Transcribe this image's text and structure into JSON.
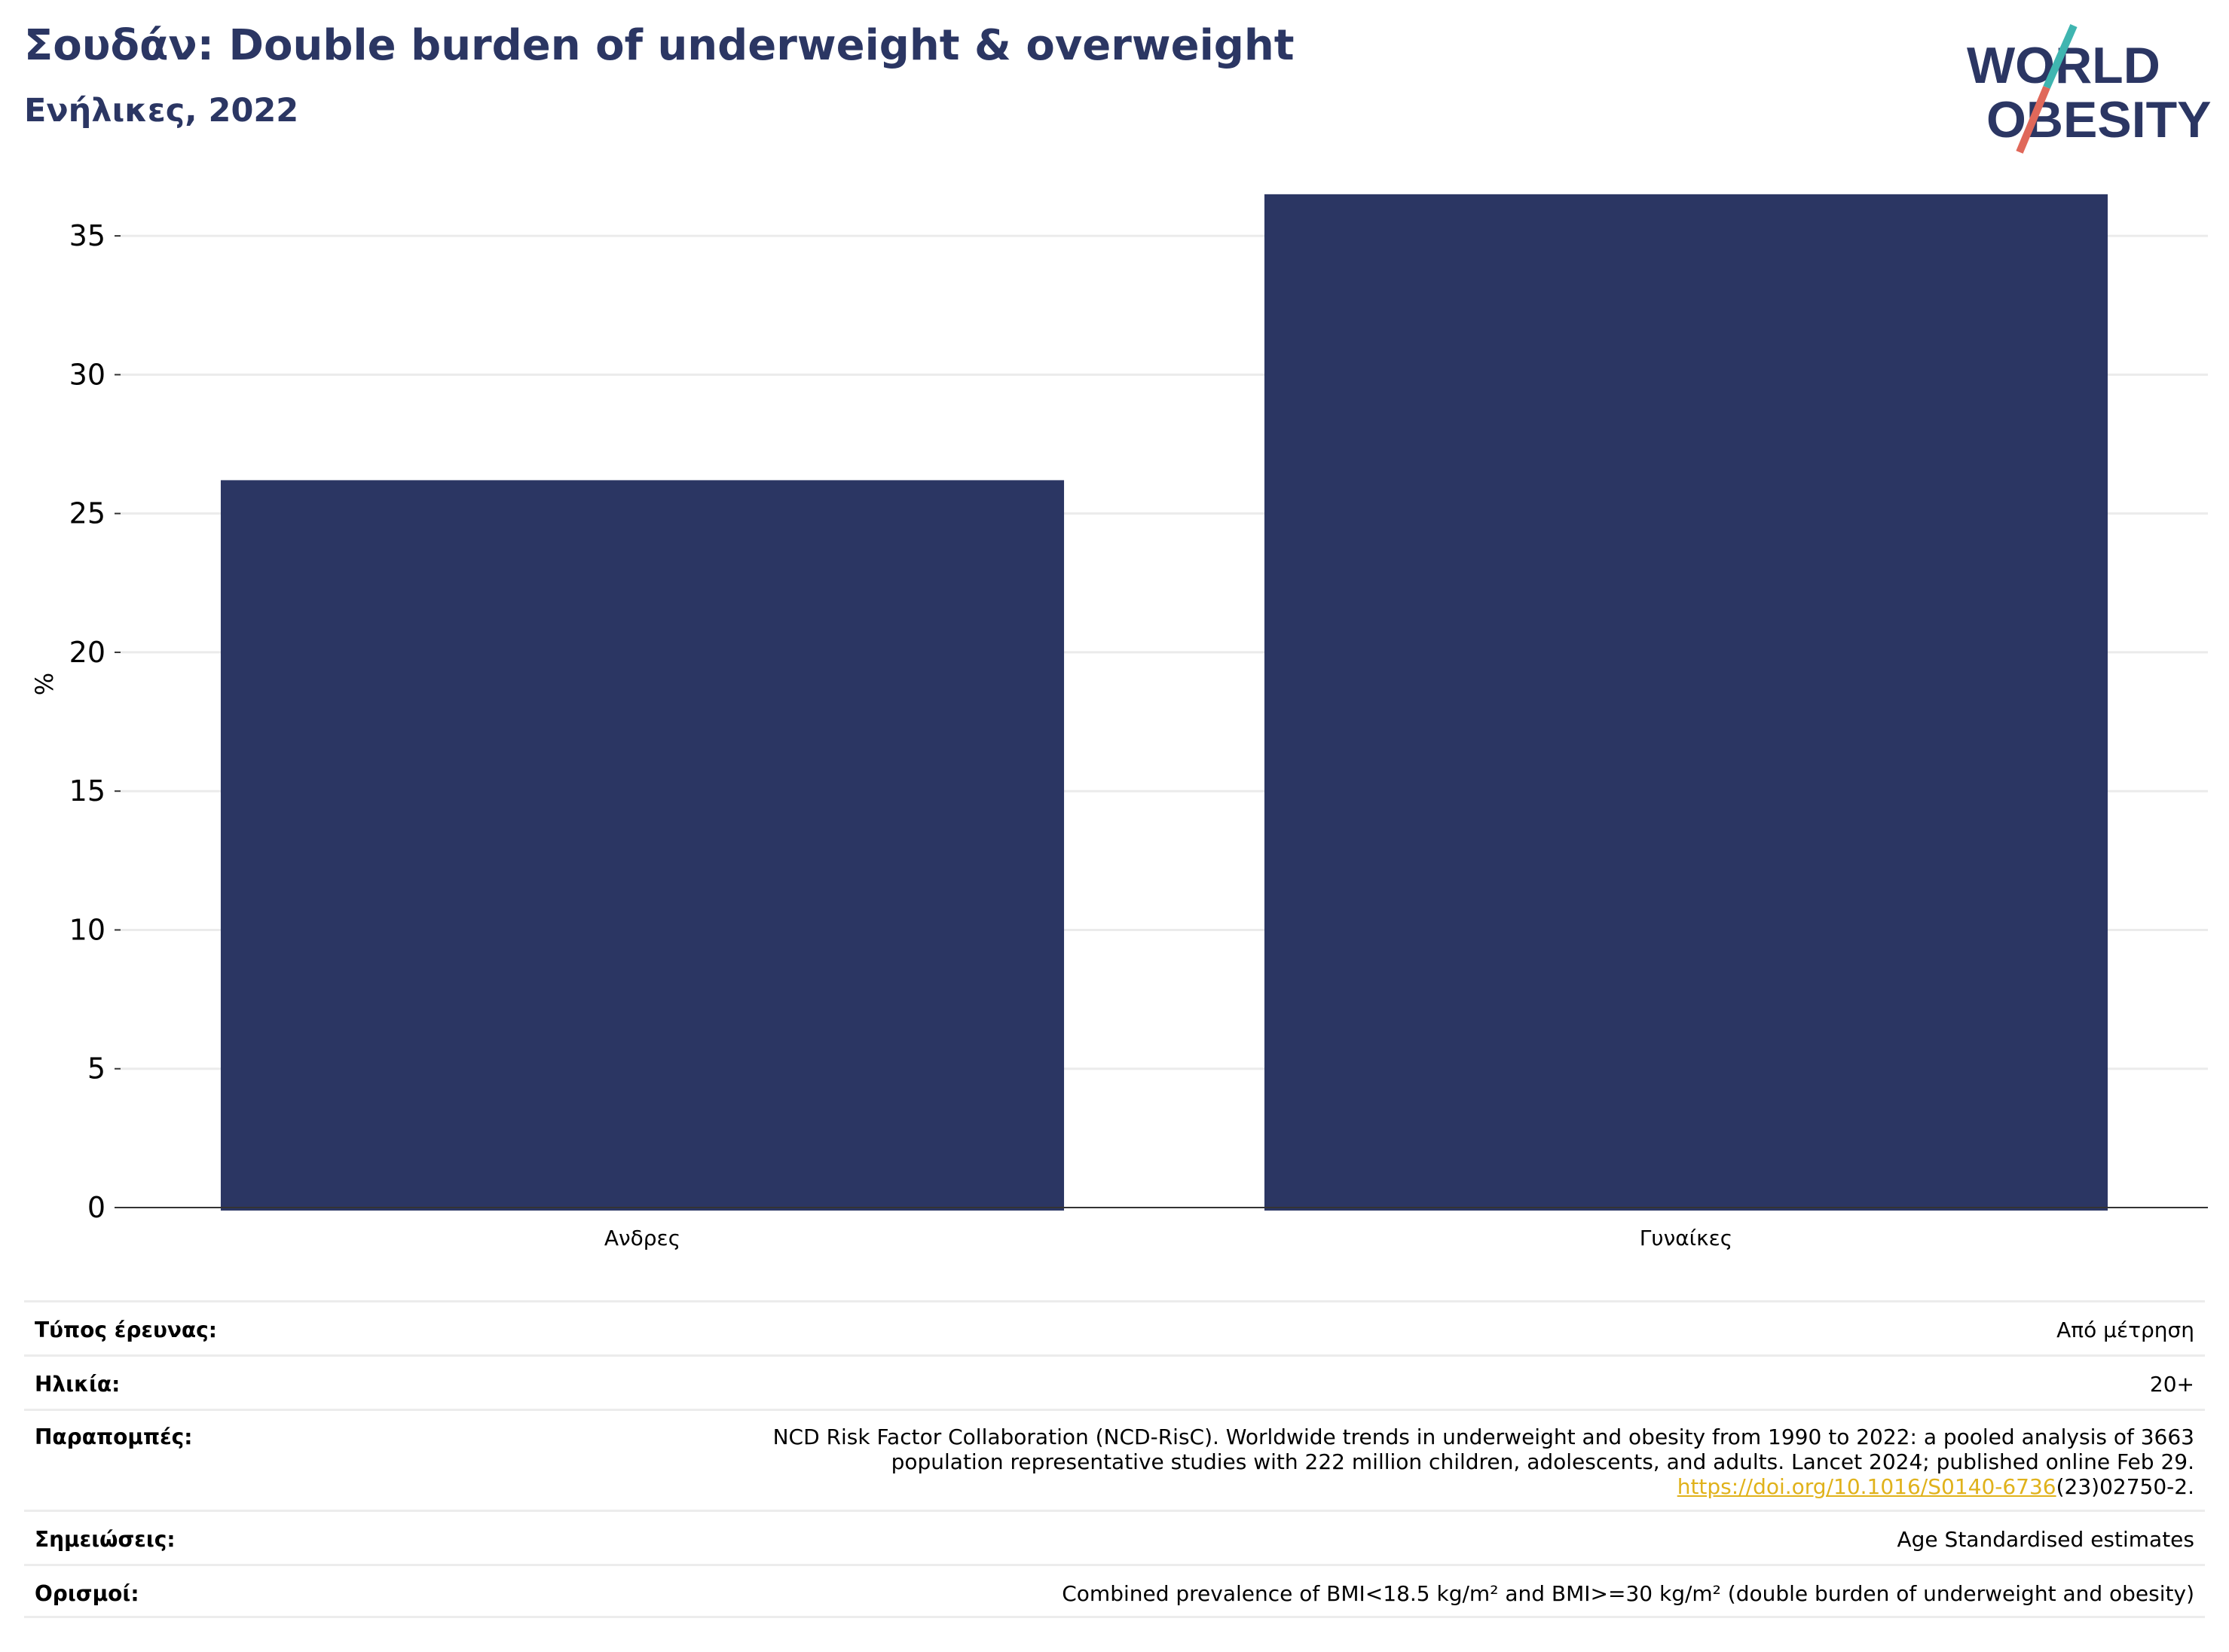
{
  "header": {
    "title": "Σουδάν: Double burden of underweight & overweight",
    "subtitle": "Ενήλικες, 2022"
  },
  "logo": {
    "line1": "WORLD",
    "line2": "OBESITY"
  },
  "chart_data": {
    "type": "bar",
    "categories": [
      "Ανδρες",
      "Γυναίκες"
    ],
    "values": [
      26.2,
      36.5
    ],
    "ylabel": "%",
    "ylim": [
      0,
      37.5
    ],
    "yticks": [
      0,
      5,
      10,
      15,
      20,
      25,
      30,
      35
    ],
    "grid": true,
    "bar_color": "#2b3663"
  },
  "info": {
    "survey_type": {
      "label": "Τύπος έρευνας:",
      "value": "Από μέτρηση"
    },
    "age": {
      "label": "Ηλικία:",
      "value": "20+"
    },
    "references": {
      "label": "Παραπομπές:",
      "line1": "NCD Risk Factor Collaboration (NCD-RisC). Worldwide trends in underweight and obesity from 1990 to 2022: a pooled analysis of 3663",
      "line2": "population representative studies with 222 million children, adolescents, and adults. Lancet 2024; published online Feb 29.",
      "link": "https://doi.org/10.1016/S0140-6736",
      "line3_suffix": "(23)02750-2."
    },
    "notes": {
      "label": "Σημειώσεις:",
      "value": "Age Standardised estimates"
    },
    "definitions": {
      "label": "Ορισμοί:",
      "value": "Combined prevalence of BMI<18.5 kg/m² and BMI>=30 kg/m² (double burden of underweight and obesity)"
    }
  }
}
